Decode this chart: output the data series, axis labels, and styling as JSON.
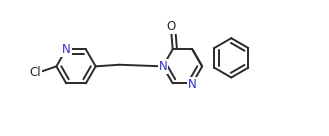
{
  "bg_color": "#ffffff",
  "line_color": "#2a2a2a",
  "N_color": "#3030cc",
  "O_color": "#2a2a2a",
  "Cl_color": "#2a2a2a",
  "line_width": 1.4,
  "font_size": 8.5,
  "figsize": [
    3.29,
    1.36
  ],
  "dpi": 100,
  "xlim": [
    -0.5,
    9.5
  ],
  "ylim": [
    -0.3,
    3.5
  ]
}
